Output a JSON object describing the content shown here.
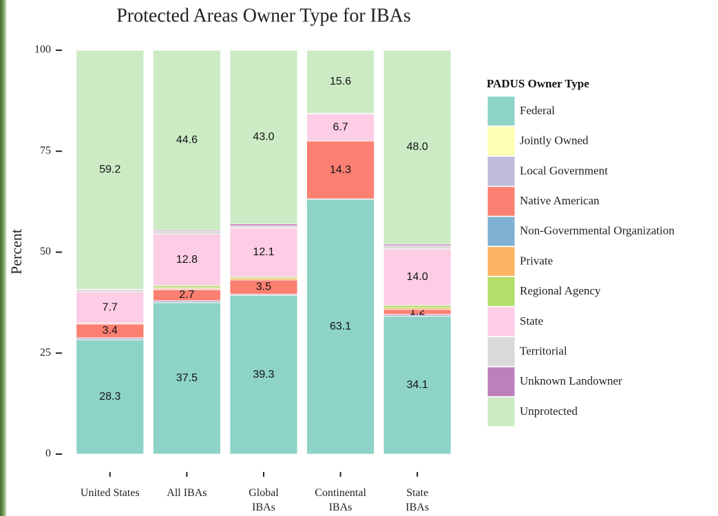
{
  "chart_data": {
    "type": "stacked_bar",
    "title": "Protected Areas Owner Type for IBAs",
    "y_label": "Percent",
    "legend_title": "PADUS Owner Type",
    "legend": "right",
    "categories": [
      "United States",
      "All IBAs",
      "Global\nIBAs",
      "Continental\nIBAs",
      "State\nIBAs"
    ],
    "ylim": [
      0,
      100
    ],
    "yticks": [
      0,
      25,
      50,
      75,
      100
    ],
    "series": [
      {
        "name": "Federal",
        "color": "#8dd3c7",
        "values": [
          28.3,
          37.5,
          39.3,
          63.1,
          34.1
        ],
        "value_labels": [
          "28.3",
          "37.5",
          "39.3",
          "63.1",
          "34.1"
        ]
      },
      {
        "name": "Jointly Owned",
        "color": "#ffffb3",
        "values": [
          0,
          0,
          0,
          0,
          0
        ]
      },
      {
        "name": "Local Government",
        "color": "#bebada",
        "values": [
          0.5,
          0.5,
          0.3,
          0.1,
          0.5
        ]
      },
      {
        "name": "Native American",
        "color": "#fb8072",
        "values": [
          3.4,
          2.7,
          3.5,
          14.3,
          1.2
        ],
        "value_labels": [
          "3.4",
          "2.7",
          "3.5",
          "14.3",
          "1.2"
        ]
      },
      {
        "name": "Non-Governmental Organization",
        "color": "#80b1d3",
        "values": [
          0,
          0.2,
          0,
          0,
          0
        ]
      },
      {
        "name": "Private",
        "color": "#fdb462",
        "values": [
          0.2,
          0.3,
          0.4,
          0,
          0.4
        ]
      },
      {
        "name": "Regional Agency",
        "color": "#b3de69",
        "values": [
          0,
          0.5,
          0.4,
          0,
          0.6
        ]
      },
      {
        "name": "State",
        "color": "#fccde5",
        "values": [
          7.7,
          12.8,
          12.1,
          6.7,
          14.0
        ],
        "value_labels": [
          "7.7",
          "12.8",
          "12.1",
          "6.7",
          "14.0"
        ]
      },
      {
        "name": "Territorial",
        "color": "#d9d9d9",
        "values": [
          0.5,
          0.6,
          0.5,
          0.2,
          0.8
        ]
      },
      {
        "name": "Unknown Landowner",
        "color": "#bc80bd",
        "values": [
          0.2,
          0.3,
          0.5,
          0,
          0.4
        ]
      },
      {
        "name": "Unprotected",
        "color": "#ccebc5",
        "values": [
          59.2,
          44.6,
          43.0,
          15.6,
          48.0
        ],
        "value_labels": [
          "59.2",
          "44.6",
          "43.0",
          "15.6",
          "48.0"
        ]
      }
    ]
  }
}
